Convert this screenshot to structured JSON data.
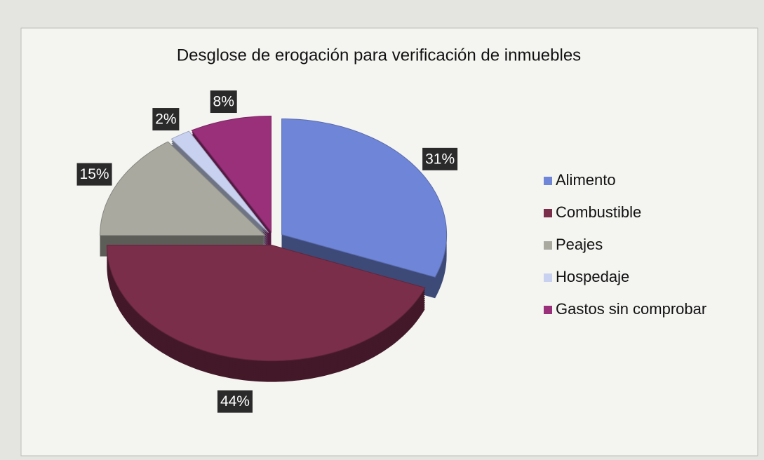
{
  "chart_data": {
    "type": "pie",
    "title": "Desglose de erogación para verificación de inmuebles",
    "categories": [
      "Alimento",
      "Combustible",
      "Peajes",
      "Hospedaje",
      "Gastos sin comprobar"
    ],
    "values": [
      31,
      44,
      15,
      2,
      8
    ],
    "value_labels": [
      "31%",
      "44%",
      "15%",
      "2%",
      "8%"
    ],
    "colors": [
      "#6f86d8",
      "#7a2e4a",
      "#a9a9a0",
      "#c8d2f0",
      "#9a2f7a"
    ],
    "legend": "right"
  }
}
